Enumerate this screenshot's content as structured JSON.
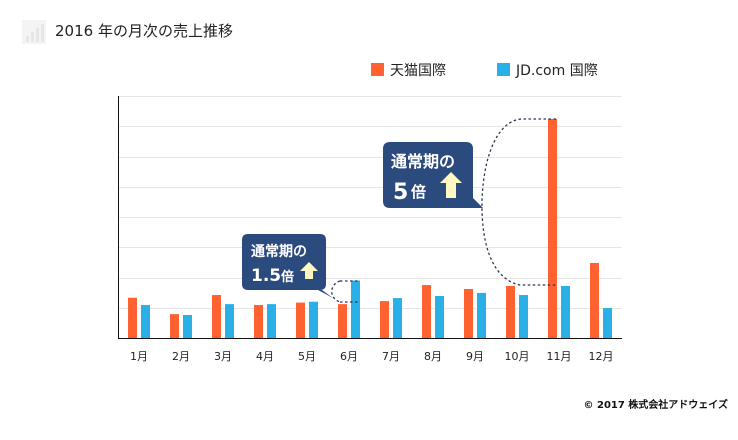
{
  "chart_data": {
    "type": "bar",
    "title": "2016 年の月次の売上推移",
    "categories": [
      "1月",
      "2月",
      "3月",
      "4月",
      "5月",
      "6月",
      "7月",
      "8月",
      "9月",
      "10月",
      "11月",
      "12月"
    ],
    "series": [
      {
        "name": "天猫国際",
        "color": "#ff6230",
        "values": [
          1.33,
          0.79,
          1.42,
          1.09,
          1.17,
          1.12,
          1.22,
          1.75,
          1.62,
          1.72,
          7.24,
          2.48
        ]
      },
      {
        "name": "JD.com 国際",
        "color": "#2ab0e6",
        "values": [
          1.09,
          0.76,
          1.12,
          1.12,
          1.2,
          1.9,
          1.32,
          1.39,
          1.49,
          1.42,
          1.72,
          0.99
        ]
      }
    ],
    "ylim": [
      0,
      8
    ],
    "grid": true,
    "y_tick_labels": false,
    "legend": "top-right",
    "annotations": [
      {
        "line1": "通常期の",
        "value": "1.5",
        "suffix": "倍",
        "month": "6月"
      },
      {
        "line1": "通常期の",
        "value": "5",
        "suffix": "倍",
        "month": "11月"
      }
    ],
    "annotation_color": "#2b4a7e",
    "arrow_color": "#fff8c0"
  },
  "footer": {
    "copyright": "© 2017 株式会社アドウェイズ"
  }
}
